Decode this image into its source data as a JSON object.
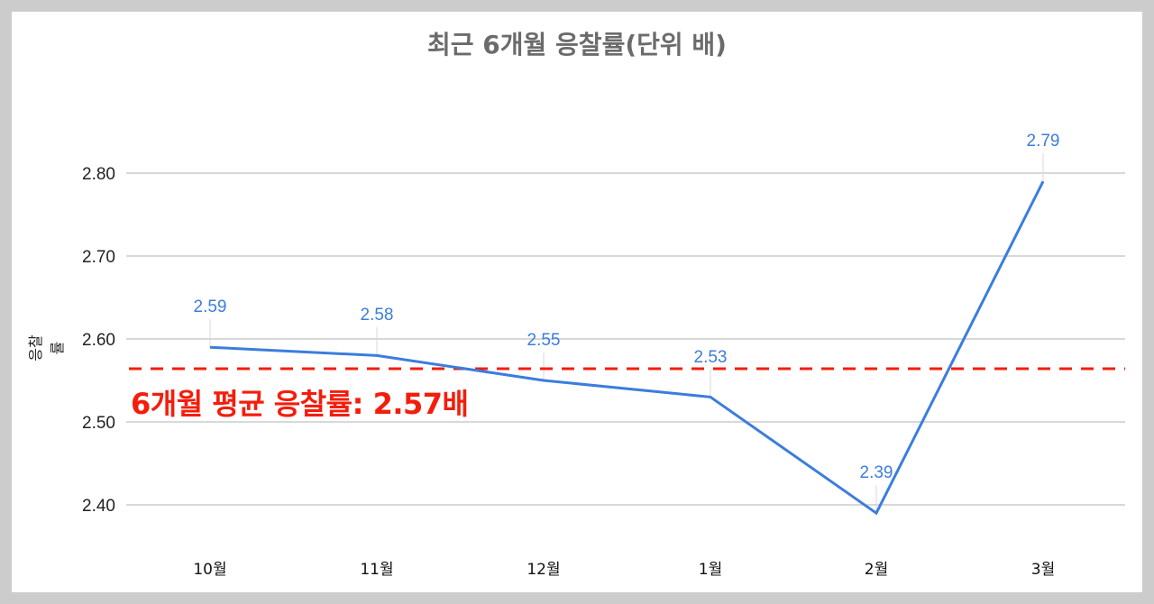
{
  "chart_data": {
    "type": "line",
    "title": "최근 6개월 응찰률(단위 배)",
    "xlabel": "",
    "ylabel": "응찰률",
    "categories": [
      "10월",
      "11월",
      "12월",
      "1월",
      "2월",
      "3월"
    ],
    "series": [
      {
        "name": "응찰률",
        "values": [
          2.59,
          2.58,
          2.55,
          2.53,
          2.39,
          2.79
        ],
        "color": "#3b7ddd"
      }
    ],
    "data_labels": [
      "2.59",
      "2.58",
      "2.55",
      "2.53",
      "2.39",
      "2.79"
    ],
    "yticks": [
      "2.40",
      "2.50",
      "2.60",
      "2.70",
      "2.80"
    ],
    "ylim": [
      2.38,
      2.85
    ],
    "grid": true,
    "legend": "none",
    "annotations": [
      {
        "type": "hline",
        "value": 2.565,
        "style": "dashed",
        "color": "#f41d0b",
        "label": "6개월 평균 응찰률: 2.57배"
      }
    ]
  },
  "colors": {
    "line": "#3b7ddd",
    "average": "#f41d0b",
    "grid": "#cccccc",
    "title": "#6b6b6b",
    "background": "#cccccc"
  }
}
